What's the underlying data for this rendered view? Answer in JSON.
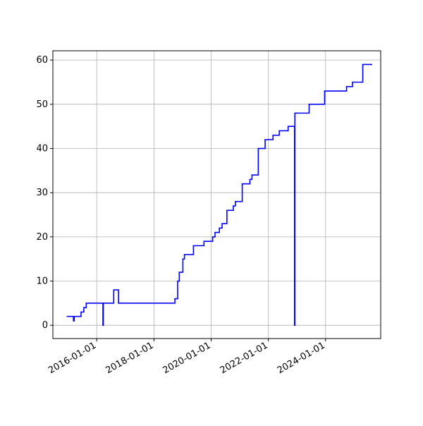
{
  "chart_data": {
    "type": "line",
    "drawstyle": "steps-post",
    "color": "#0000ff",
    "grid": true,
    "x": [
      "2014-12-20",
      "2015-03-10",
      "2015-03-20",
      "2015-06-15",
      "2015-07-20",
      "2015-08-20",
      "2016-03-20",
      "2016-03-25",
      "2016-08-05",
      "2016-10-05",
      "2018-09-25",
      "2018-10-30",
      "2018-11-20",
      "2019-01-05",
      "2019-01-25",
      "2019-05-20",
      "2019-10-01",
      "2020-01-20",
      "2020-02-20",
      "2020-04-15",
      "2020-05-20",
      "2020-07-20",
      "2020-10-10",
      "2020-11-05",
      "2021-02-01",
      "2021-05-10",
      "2021-06-05",
      "2021-08-25",
      "2021-11-20",
      "2022-03-01",
      "2022-05-20",
      "2022-09-10",
      "2022-12-01",
      "2022-12-05",
      "2023-06-05",
      "2023-12-20",
      "2024-09-25",
      "2024-12-10",
      "2025-04-20",
      "2025-08-10"
    ],
    "values": [
      2,
      1,
      2,
      3,
      4,
      5,
      0,
      5,
      8,
      5,
      6,
      10,
      12,
      15,
      16,
      18,
      19,
      20,
      21,
      22,
      23,
      26,
      27,
      28,
      32,
      33,
      34,
      40,
      42,
      43,
      44,
      45,
      0,
      48,
      50,
      53,
      54,
      55,
      59,
      59
    ],
    "xlim": [
      "2014-06-20",
      "2025-12-05"
    ],
    "xticks": [
      "2016-01-01",
      "2018-01-01",
      "2020-01-01",
      "2022-01-01",
      "2024-01-01"
    ],
    "ylim": [
      -3,
      62.1
    ],
    "yticks": [
      0,
      10,
      20,
      30,
      40,
      50,
      60
    ]
  }
}
